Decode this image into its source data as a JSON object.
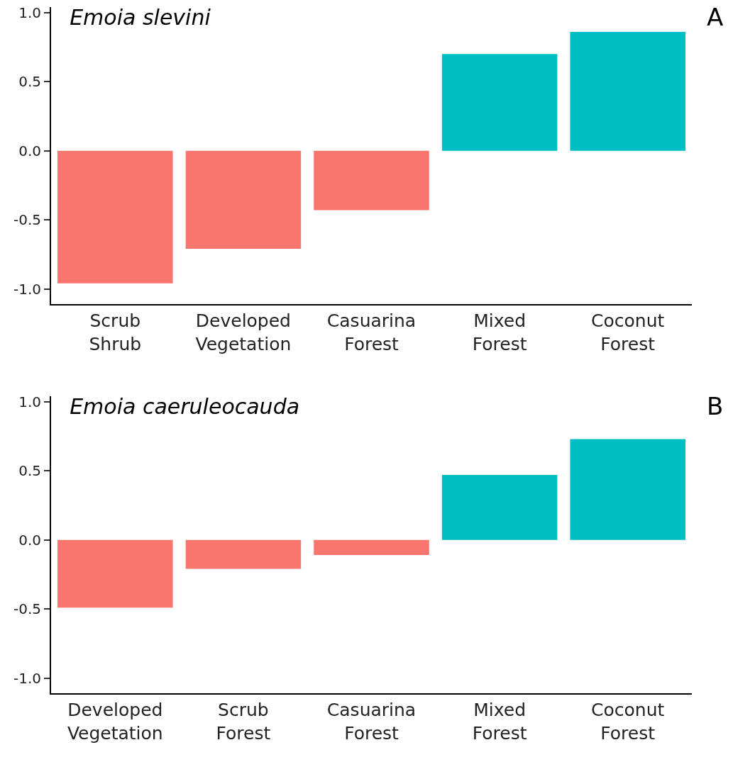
{
  "chart_data": [
    {
      "type": "bar",
      "title": "Emoia slevini",
      "annotations": [
        "A"
      ],
      "categories": [
        "Scrub Shrub",
        "Developed Vegetation",
        "Casuarina Forest",
        "Mixed Forest",
        "Coconut Forest"
      ],
      "values": [
        -0.96,
        -0.71,
        -0.43,
        0.7,
        0.86
      ],
      "colors": [
        "#f8766d",
        "#f8766d",
        "#f8766d",
        "#00bfc4",
        "#00bfc4"
      ],
      "ylim": [
        -1.11,
        1.04
      ],
      "yticks": [
        {
          "value": -1,
          "label": "-1.0"
        },
        {
          "value": -0.5,
          "label": "-0.5"
        },
        {
          "value": 0,
          "label": "0.0"
        },
        {
          "value": 0.5,
          "label": "0.5"
        },
        {
          "value": 1,
          "label": "1.0"
        }
      ],
      "grid": false
    },
    {
      "type": "bar",
      "title": "Emoia caeruleocauda",
      "annotations": [
        "B"
      ],
      "categories": [
        "Developed Vegetation",
        "Scrub Forest",
        "Casuarina Forest",
        "Mixed Forest",
        "Coconut Forest"
      ],
      "values": [
        -0.49,
        -0.21,
        -0.11,
        0.47,
        0.73
      ],
      "colors": [
        "#f8766d",
        "#f8766d",
        "#f8766d",
        "#00bfc4",
        "#00bfc4"
      ],
      "ylim": [
        -1.11,
        1.04
      ],
      "yticks": [
        {
          "value": -1,
          "label": "-1.0"
        },
        {
          "value": -0.5,
          "label": "-0.5"
        },
        {
          "value": 0,
          "label": "0.0"
        },
        {
          "value": 0.5,
          "label": "0.5"
        },
        {
          "value": 1,
          "label": "1.0"
        }
      ],
      "grid": false
    }
  ]
}
